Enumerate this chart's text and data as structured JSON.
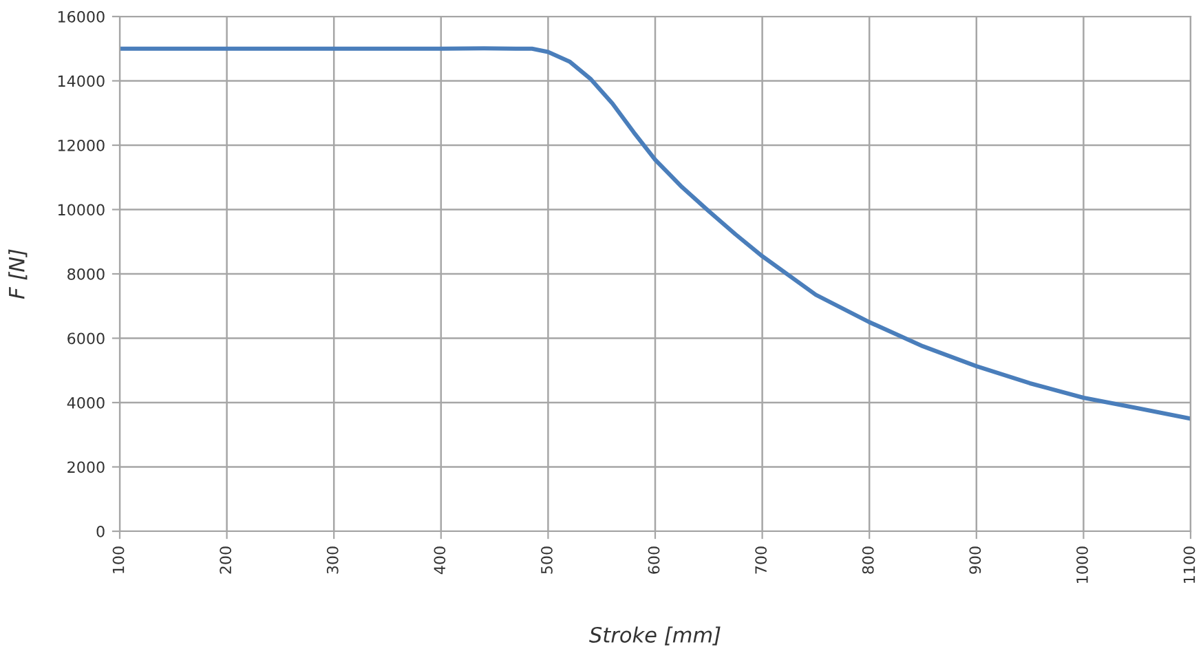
{
  "chart_data": {
    "type": "line",
    "xlabel": "Stroke [mm]",
    "ylabel": "F [N]",
    "x": [
      100,
      200,
      300,
      400,
      440,
      470,
      485,
      500,
      520,
      540,
      560,
      580,
      600,
      625,
      650,
      675,
      700,
      750,
      800,
      850,
      900,
      950,
      1000,
      1050,
      1100
    ],
    "series": [
      {
        "color": "#4a7ebb",
        "values": [
          15000,
          15000,
          15000,
          15000,
          15010,
          15000,
          15000,
          14900,
          14600,
          14050,
          13300,
          12400,
          11550,
          10700,
          9950,
          9230,
          8550,
          7350,
          6500,
          5750,
          5130,
          4600,
          4150,
          3830,
          3500
        ]
      }
    ],
    "xlim": [
      100,
      1100
    ],
    "xticks": [
      100,
      200,
      300,
      400,
      500,
      600,
      700,
      800,
      900,
      1000,
      1100
    ],
    "ylim": [
      0,
      16000
    ],
    "yticks": [
      0,
      2000,
      4000,
      6000,
      8000,
      10000,
      12000,
      14000,
      16000
    ],
    "grid": true,
    "legend": false,
    "marker": "none",
    "line_style": "solid"
  }
}
